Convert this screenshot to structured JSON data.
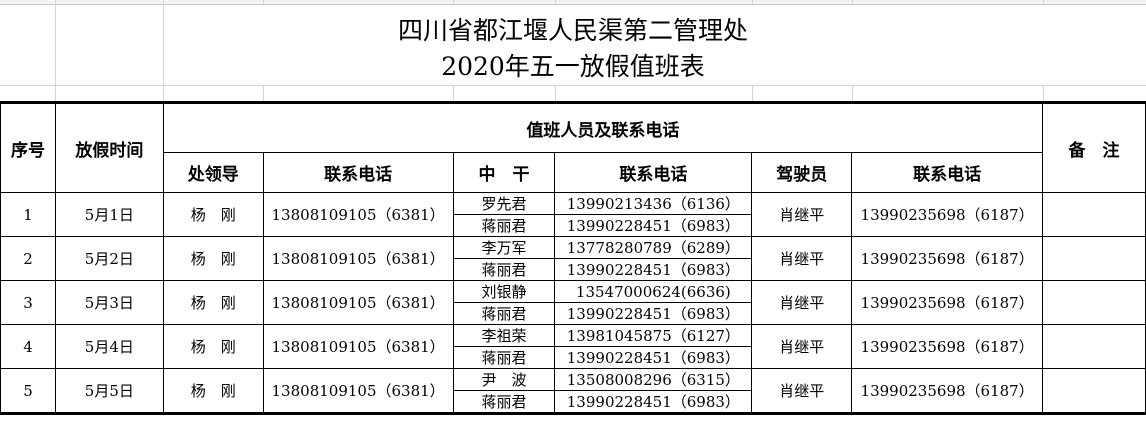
{
  "title_line1": "四川省都江堰人民渠第二管理处",
  "title_line2": "2020年五一放假值班表",
  "headers": {
    "seq": "序号",
    "date": "放假时间",
    "group": "值班人员及联系电话",
    "leader": "处领导",
    "leader_phone": "联系电话",
    "cadre": "中　干",
    "cadre_phone": "联系电话",
    "driver": "驾驶员",
    "driver_phone": "联系电话",
    "remarks": "备　注"
  },
  "rows": [
    {
      "seq": "1",
      "date": "5月1日",
      "leader": "杨　刚",
      "leader_phone": "13808109105（6381）",
      "cadre1": "罗先君",
      "cadre1_phone": "13990213436（6136）",
      "cadre2": "蒋丽君",
      "cadre2_phone": "13990228451（6983）",
      "driver": "肖继平",
      "driver_phone": "13990235698（6187）"
    },
    {
      "seq": "2",
      "date": "5月2日",
      "leader": "杨　刚",
      "leader_phone": "13808109105（6381）",
      "cadre1": "李万军",
      "cadre1_phone": "13778280789（6289）",
      "cadre2": "蒋丽君",
      "cadre2_phone": "13990228451（6983）",
      "driver": "肖继平",
      "driver_phone": "13990235698（6187）"
    },
    {
      "seq": "3",
      "date": "5月3日",
      "leader": "杨　刚",
      "leader_phone": "13808109105（6381）",
      "cadre1": "刘银静",
      "cadre1_phone": "13547000624(6636)",
      "cadre2": "蒋丽君",
      "cadre2_phone": "13990228451（6983）",
      "driver": "肖继平",
      "driver_phone": "13990235698（6187）"
    },
    {
      "seq": "4",
      "date": "5月4日",
      "leader": "杨　刚",
      "leader_phone": "13808109105（6381）",
      "cadre1": "李祖荣",
      "cadre1_phone": "13981045875（6127）",
      "cadre2": "蒋丽君",
      "cadre2_phone": "13990228451（6983）",
      "driver": "肖继平",
      "driver_phone": "13990235698（6187）"
    },
    {
      "seq": "5",
      "date": "5月5日",
      "leader": "杨　刚",
      "leader_phone": "13808109105（6381）",
      "cadre1": "尹　波",
      "cadre1_phone": "13508008296（6315）",
      "cadre2": "蒋丽君",
      "cadre2_phone": "13990228451（6983）",
      "driver": "肖继平",
      "driver_phone": "13990235698（6187）"
    }
  ]
}
